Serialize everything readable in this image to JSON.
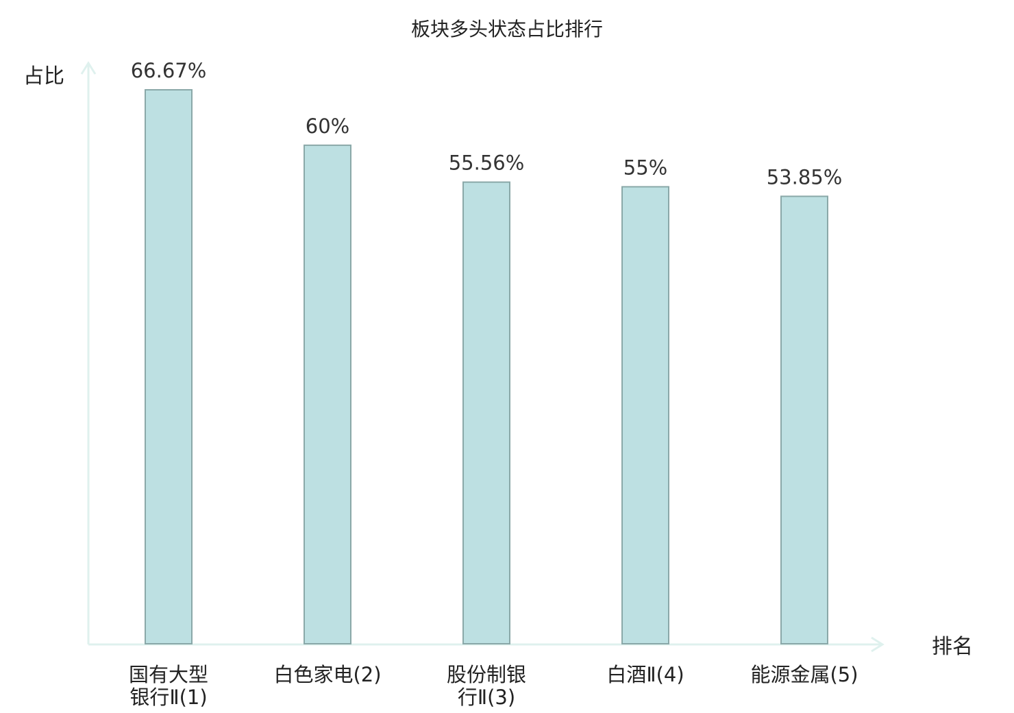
{
  "chart_data": {
    "type": "bar",
    "title": "板块多头状态占比排行",
    "ylabel": "占比",
    "xlabel": "排名",
    "categories": [
      [
        "国有大型",
        "银行Ⅱ(1)"
      ],
      [
        "白色家电(2)"
      ],
      [
        "股份制银",
        "行Ⅱ(3)"
      ],
      [
        "白酒Ⅱ(4)"
      ],
      [
        "能源金属(5)"
      ]
    ],
    "values": [
      66.67,
      60,
      55.56,
      55,
      53.85
    ],
    "value_labels": [
      "66.67%",
      "60%",
      "55.56%",
      "55%",
      "53.85%"
    ],
    "highlight_index": 2,
    "ylim": [
      0,
      66.67
    ],
    "grid": false,
    "colors": {
      "bar_fill": "#bde0e2",
      "bar_stroke": "#8aa8a8",
      "axis": "#dff1ee",
      "highlight_text": "#e00000",
      "text": "#222222",
      "value_text": "#333333"
    }
  }
}
